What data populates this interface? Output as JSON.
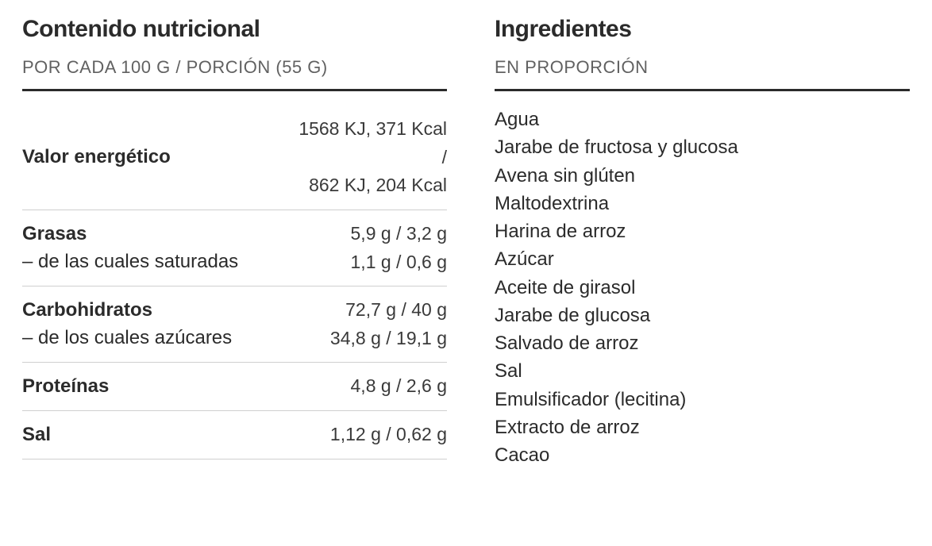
{
  "nutrition": {
    "title": "Contenido nutricional",
    "subtitle": "POR CADA 100 G / PORCIÓN (55 G)",
    "rows": [
      {
        "label": "Valor energético",
        "sub": "",
        "value": "1568 KJ, 371 Kcal\n/\n862 KJ, 204 Kcal"
      },
      {
        "label": "Grasas",
        "sub": "– de las cuales saturadas",
        "value": "5,9 g / 3,2 g\n1,1 g / 0,6 g"
      },
      {
        "label": "Carbohidratos",
        "sub": "– de los cuales azúcares",
        "value": "72,7 g / 40 g\n34,8 g / 19,1 g"
      },
      {
        "label": "Proteínas",
        "sub": "",
        "value": "4,8 g / 2,6 g"
      },
      {
        "label": "Sal",
        "sub": "",
        "value": "1,12 g / 0,62 g"
      }
    ]
  },
  "ingredients": {
    "title": "Ingredientes",
    "subtitle": "EN PROPORCIÓN",
    "items": [
      "Agua",
      "Jarabe de fructosa y glucosa",
      "Avena sin glúten",
      "Maltodextrina",
      "Harina de arroz",
      "Azúcar",
      "Aceite de girasol",
      "Jarabe de glucosa",
      "Salvado de arroz",
      "Sal",
      "Emulsificador (lecitina)",
      "Extracto de arroz",
      "Cacao"
    ]
  },
  "colors": {
    "text": "#2b2b2b",
    "muted": "#616161",
    "rule": "#2b2b2b",
    "divider": "#cfcfcf",
    "background": "#ffffff"
  }
}
